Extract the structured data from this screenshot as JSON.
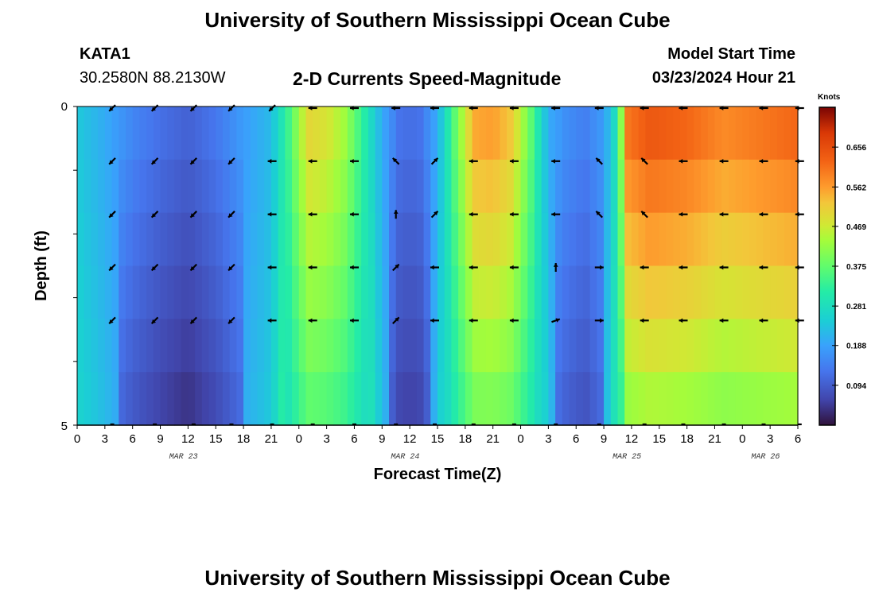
{
  "header": {
    "title": "University of Southern Mississippi Ocean Cube",
    "station_id": "KATA1",
    "station_coords": "30.2580N  88.2130W",
    "plot_title": "2-D Currents Speed-Magnitude",
    "model_start_label": "Model Start Time",
    "model_start_value": "03/23/2024 Hour 21"
  },
  "footer": {
    "title": "University of Southern Mississippi Ocean Cube"
  },
  "chart_data": {
    "type": "heatmap",
    "title": "2-D Currents Speed-Magnitude",
    "xlabel": "Forecast Time(Z)",
    "ylabel": "Depth (ft)",
    "colorbar_label": "Knots",
    "xlim": [
      0,
      78
    ],
    "ylim": [
      0,
      5
    ],
    "x_tick_labels": [
      "0",
      "3",
      "6",
      "9",
      "12",
      "15",
      "18",
      "21",
      "0",
      "3",
      "6",
      "9",
      "12",
      "15",
      "18",
      "21",
      "0",
      "3",
      "6",
      "9",
      "12",
      "15",
      "18",
      "21",
      "0",
      "3",
      "6"
    ],
    "y_tick_labels": [
      "0",
      "5"
    ],
    "date_labels": [
      {
        "text": "MAR 23",
        "hour": 11.5
      },
      {
        "text": "MAR 24",
        "hour": 35.5
      },
      {
        "text": "MAR 25",
        "hour": 59.5
      },
      {
        "text": "MAR 26",
        "hour": 74.5
      }
    ],
    "colorbar_ticks": [
      "0.094",
      "0.188",
      "0.281",
      "0.375",
      "0.469",
      "0.562",
      "0.656"
    ],
    "colorbar_range": [
      0,
      0.75
    ],
    "depth_levels": 6,
    "speed_profile_knots": [
      [
        0,
        0.24
      ],
      [
        3,
        0.2
      ],
      [
        6,
        0.15
      ],
      [
        9,
        0.12
      ],
      [
        12,
        0.1
      ],
      [
        15,
        0.13
      ],
      [
        18,
        0.18
      ],
      [
        21,
        0.22
      ],
      [
        23,
        0.35
      ],
      [
        25,
        0.5
      ],
      [
        27,
        0.48
      ],
      [
        29,
        0.43
      ],
      [
        31,
        0.32
      ],
      [
        33,
        0.2
      ],
      [
        35,
        0.12
      ],
      [
        37,
        0.12
      ],
      [
        39,
        0.2
      ],
      [
        41,
        0.38
      ],
      [
        43,
        0.55
      ],
      [
        45,
        0.56
      ],
      [
        47,
        0.52
      ],
      [
        49,
        0.38
      ],
      [
        51,
        0.2
      ],
      [
        53,
        0.16
      ],
      [
        55,
        0.14
      ],
      [
        57,
        0.18
      ],
      [
        58.5,
        0.3
      ],
      [
        59.5,
        0.6
      ],
      [
        62,
        0.64
      ],
      [
        66,
        0.62
      ],
      [
        70,
        0.58
      ],
      [
        74,
        0.6
      ],
      [
        78,
        0.62
      ]
    ],
    "arrow_hours": [
      3.8,
      8.4,
      12.6,
      16.7,
      21.1,
      25.5,
      30.0,
      34.5,
      38.7,
      42.9,
      47.3,
      51.8,
      56.5,
      61.4,
      65.6,
      70.0,
      74.3,
      78.2
    ],
    "arrow_directions_deg": [
      [
        225,
        225,
        225,
        225,
        225,
        270,
        270,
        270,
        270,
        270,
        270,
        270,
        270,
        270,
        270,
        270,
        270,
        270
      ],
      [
        225,
        225,
        225,
        225,
        270,
        270,
        270,
        315,
        45,
        270,
        270,
        270,
        315,
        315,
        270,
        270,
        270,
        270
      ],
      [
        225,
        225,
        225,
        225,
        270,
        270,
        270,
        0,
        45,
        270,
        270,
        270,
        315,
        315,
        270,
        270,
        270,
        270
      ],
      [
        225,
        225,
        225,
        225,
        270,
        270,
        270,
        45,
        270,
        270,
        270,
        0,
        90,
        270,
        270,
        270,
        270,
        270
      ],
      [
        225,
        225,
        225,
        225,
        270,
        270,
        270,
        45,
        270,
        270,
        270,
        70,
        90,
        270,
        270,
        270,
        270,
        270
      ],
      [
        90,
        90,
        90,
        90,
        90,
        90,
        90,
        90,
        90,
        90,
        90,
        90,
        90,
        90,
        90,
        90,
        90,
        90
      ]
    ]
  }
}
